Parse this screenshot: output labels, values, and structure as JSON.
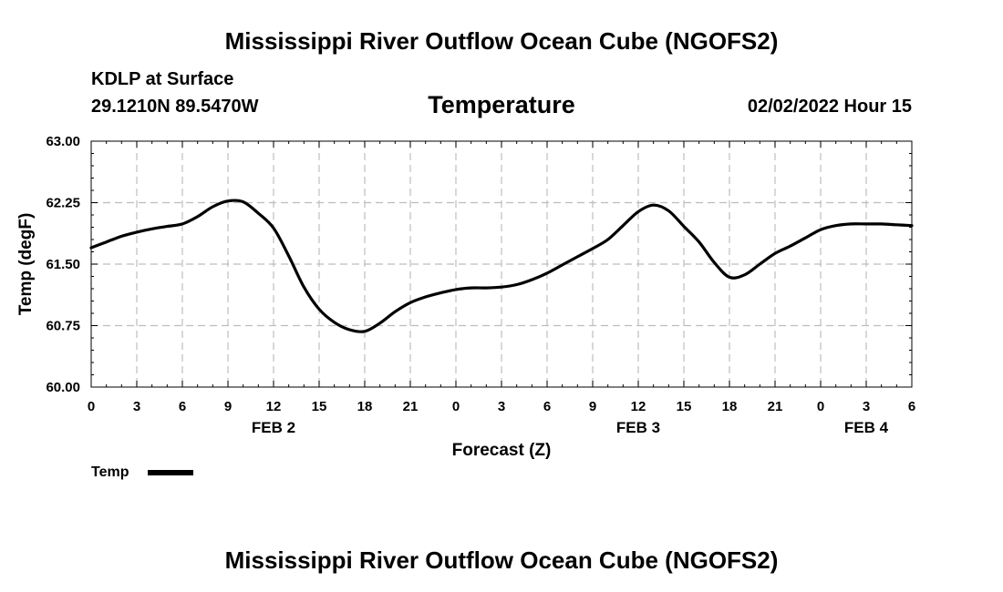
{
  "header": {
    "title": "Mississippi River Outflow Ocean Cube (NGOFS2)",
    "station": "KDLP at Surface",
    "coords": "29.1210N  89.5470W",
    "variable": "Temperature",
    "datetime": "02/02/2022 Hour 15"
  },
  "footer": {
    "title": "Mississippi River Outflow Ocean Cube (NGOFS2)"
  },
  "legend": {
    "label": "Temp"
  },
  "chart_data": {
    "type": "line",
    "title": "Temperature",
    "xlabel": "Forecast (Z)",
    "ylabel": "Temp (degF)",
    "xlim": [
      0,
      54
    ],
    "ylim": [
      60.0,
      63.0
    ],
    "x_ticks": [
      0,
      3,
      6,
      9,
      12,
      15,
      18,
      21,
      24,
      27,
      30,
      33,
      36,
      39,
      42,
      45,
      48,
      51,
      54
    ],
    "x_tick_labels": [
      "0",
      "3",
      "6",
      "9",
      "12",
      "15",
      "18",
      "21",
      "0",
      "3",
      "6",
      "9",
      "12",
      "15",
      "18",
      "21",
      "0",
      "3",
      "6"
    ],
    "y_ticks": [
      60.0,
      60.75,
      61.5,
      62.25,
      63.0
    ],
    "y_tick_labels": [
      "60.00",
      "60.75",
      "61.50",
      "62.25",
      "63.00"
    ],
    "day_labels": [
      {
        "label": "FEB 2",
        "x": 12
      },
      {
        "label": "FEB 3",
        "x": 36
      },
      {
        "label": "FEB 4",
        "x": 51
      }
    ],
    "grid": true,
    "series": [
      {
        "name": "Temp",
        "color": "#000000",
        "x": [
          0,
          1,
          2,
          3,
          4,
          5,
          6,
          7,
          8,
          9,
          10,
          11,
          12,
          13,
          14,
          15,
          16,
          17,
          18,
          19,
          20,
          21,
          22,
          23,
          24,
          25,
          26,
          27,
          28,
          29,
          30,
          31,
          32,
          33,
          34,
          35,
          36,
          37,
          38,
          39,
          40,
          41,
          42,
          43,
          44,
          45,
          46,
          47,
          48,
          49,
          50,
          51,
          52,
          53,
          54
        ],
        "values": [
          61.7,
          61.77,
          61.84,
          61.89,
          61.93,
          61.96,
          61.99,
          62.08,
          62.2,
          62.27,
          62.26,
          62.12,
          61.94,
          61.6,
          61.22,
          60.95,
          60.79,
          60.7,
          60.68,
          60.78,
          60.92,
          61.03,
          61.1,
          61.15,
          61.19,
          61.21,
          61.21,
          61.22,
          61.25,
          61.31,
          61.39,
          61.49,
          61.59,
          61.69,
          61.8,
          61.97,
          62.14,
          62.22,
          62.15,
          61.96,
          61.77,
          61.52,
          61.34,
          61.37,
          61.5,
          61.63,
          61.72,
          61.82,
          61.92,
          61.97,
          61.99,
          61.99,
          61.99,
          61.98,
          61.97
        ]
      }
    ]
  }
}
